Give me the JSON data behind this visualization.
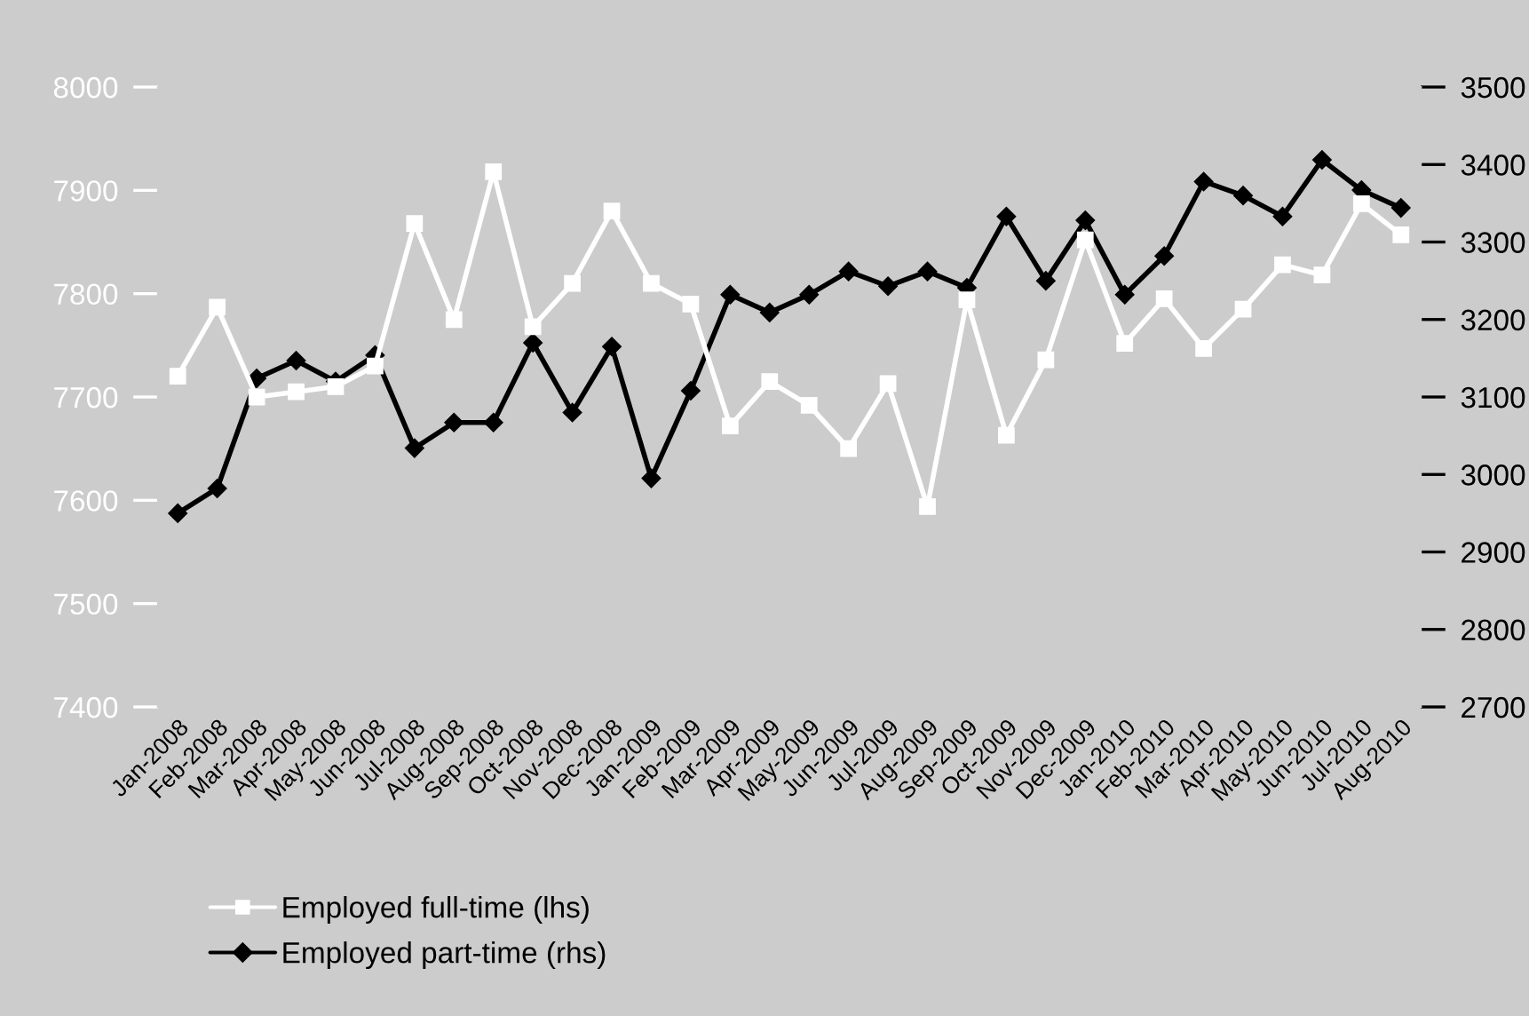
{
  "chart_data": {
    "type": "line",
    "categories": [
      "Jan-2008",
      "Feb-2008",
      "Mar-2008",
      "Apr-2008",
      "May-2008",
      "Jun-2008",
      "Jul-2008",
      "Aug-2008",
      "Sep-2008",
      "Oct-2008",
      "Nov-2008",
      "Dec-2008",
      "Jan-2009",
      "Feb-2009",
      "Mar-2009",
      "Apr-2009",
      "May-2009",
      "Jun-2009",
      "Jul-2009",
      "Aug-2009",
      "Sep-2009",
      "Oct-2009",
      "Nov-2009",
      "Dec-2009",
      "Jan-2010",
      "Feb-2010",
      "Mar-2010",
      "Apr-2010",
      "May-2010",
      "Jun-2010",
      "Jul-2010",
      "Aug-2010"
    ],
    "series": [
      {
        "name": "Employed full-time (lhs)",
        "color": "#ffffff",
        "marker": "square",
        "values": [
          7720,
          7787,
          7700,
          7705,
          7710,
          7730,
          7868,
          7775,
          7918,
          7768,
          7810,
          7880,
          7810,
          7790,
          7672,
          7715,
          7692,
          7650,
          7713,
          7594,
          7794,
          7663,
          7736,
          7852,
          7752,
          7795,
          7747,
          7785,
          7828,
          7818,
          7887,
          7857
        ]
      },
      {
        "name": "Employed part-time (rhs)",
        "color": "#000000",
        "marker": "diamond",
        "axis": "y2",
        "values": [
          2950,
          2982,
          3124,
          3147,
          3120,
          3154,
          3034,
          3067,
          3067,
          3170,
          3080,
          3165,
          2995,
          3108,
          3232,
          3209,
          3232,
          3262,
          3243,
          3262,
          3241,
          3333,
          3250,
          3328,
          3232,
          3282,
          3378,
          3360,
          3333,
          3406,
          3367,
          3344
        ]
      }
    ],
    "ylim": [
      7400,
      8000
    ],
    "yticks": [
      7400,
      7500,
      7600,
      7700,
      7800,
      7900,
      8000
    ],
    "y2lim": [
      2700,
      3500
    ],
    "y2ticks": [
      2700,
      2800,
      2900,
      3000,
      3100,
      3200,
      3300,
      3400,
      3500
    ],
    "legend": "bottom left",
    "line_style": "solid"
  }
}
